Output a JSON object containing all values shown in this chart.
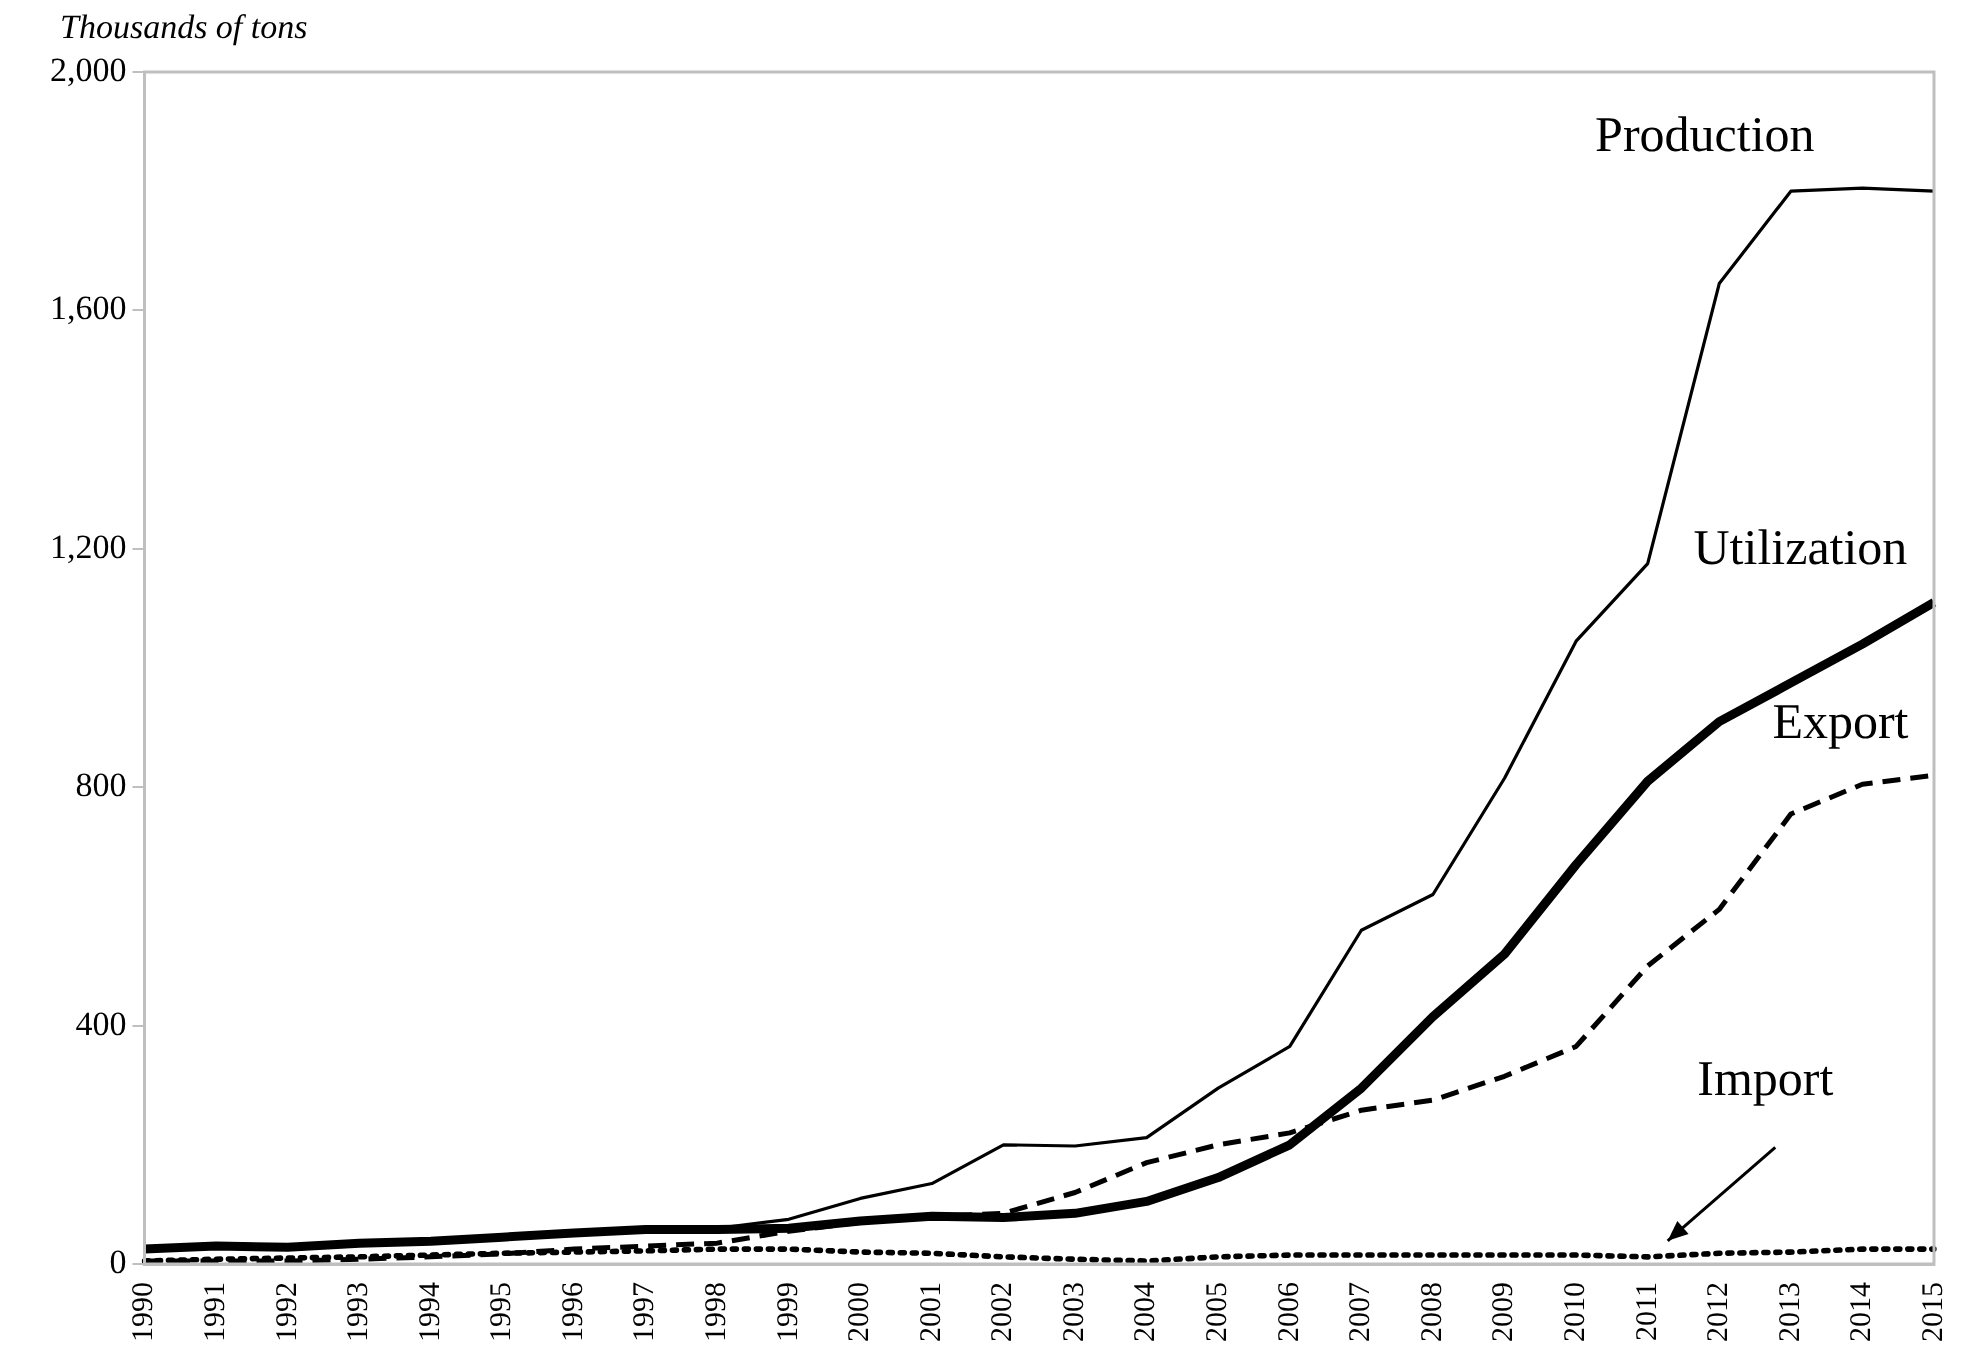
{
  "chart_data": {
    "type": "line",
    "ylabel": "Thousands of tons",
    "categories": [
      "1990",
      "1991",
      "1992",
      "1993",
      "1994",
      "1995",
      "1996",
      "1997",
      "1998",
      "1999",
      "2000",
      "2001",
      "2002",
      "2003",
      "2004",
      "2005",
      "2006",
      "2007",
      "2008",
      "2009",
      "2010",
      "2011",
      "2012",
      "2013",
      "2014",
      "2015"
    ],
    "ylim": [
      0,
      2000
    ],
    "yticks": [
      {
        "value": 0,
        "label": "0"
      },
      {
        "value": 400,
        "label": "400"
      },
      {
        "value": 800,
        "label": "800"
      },
      {
        "value": 1200,
        "label": "1,200"
      },
      {
        "value": 1600,
        "label": "1,600"
      },
      {
        "value": 2000,
        "label": "2,000"
      }
    ],
    "grid": false,
    "legend": false,
    "marker": "none",
    "series": [
      {
        "name": "Production",
        "color": "#000000",
        "line_style": "solid",
        "values": [
          25,
          30,
          28,
          35,
          38,
          45,
          52,
          58,
          60,
          75,
          110,
          135,
          200,
          198,
          212,
          295,
          365,
          560,
          620,
          815,
          1045,
          1175,
          1645,
          1800,
          1805,
          1800
        ]
      },
      {
        "name": "Utilization",
        "color": "#000000",
        "line_style": "solid",
        "values": [
          25,
          30,
          28,
          35,
          38,
          45,
          52,
          58,
          58,
          60,
          72,
          80,
          78,
          85,
          105,
          145,
          200,
          295,
          415,
          520,
          670,
          810,
          910,
          975,
          1040,
          1110
        ]
      },
      {
        "name": "Export",
        "color": "#000000",
        "line_style": "dashed",
        "values": [
          5,
          5,
          5,
          8,
          12,
          17,
          25,
          30,
          35,
          55,
          70,
          80,
          85,
          120,
          170,
          200,
          220,
          258,
          275,
          315,
          365,
          500,
          595,
          755,
          805,
          820
        ]
      },
      {
        "name": "Import",
        "color": "#000000",
        "line_style": "dotted",
        "values": [
          5,
          8,
          10,
          12,
          15,
          18,
          20,
          22,
          25,
          25,
          20,
          18,
          12,
          8,
          5,
          12,
          15,
          15,
          15,
          15,
          15,
          12,
          18,
          20,
          25,
          25
        ]
      }
    ]
  }
}
